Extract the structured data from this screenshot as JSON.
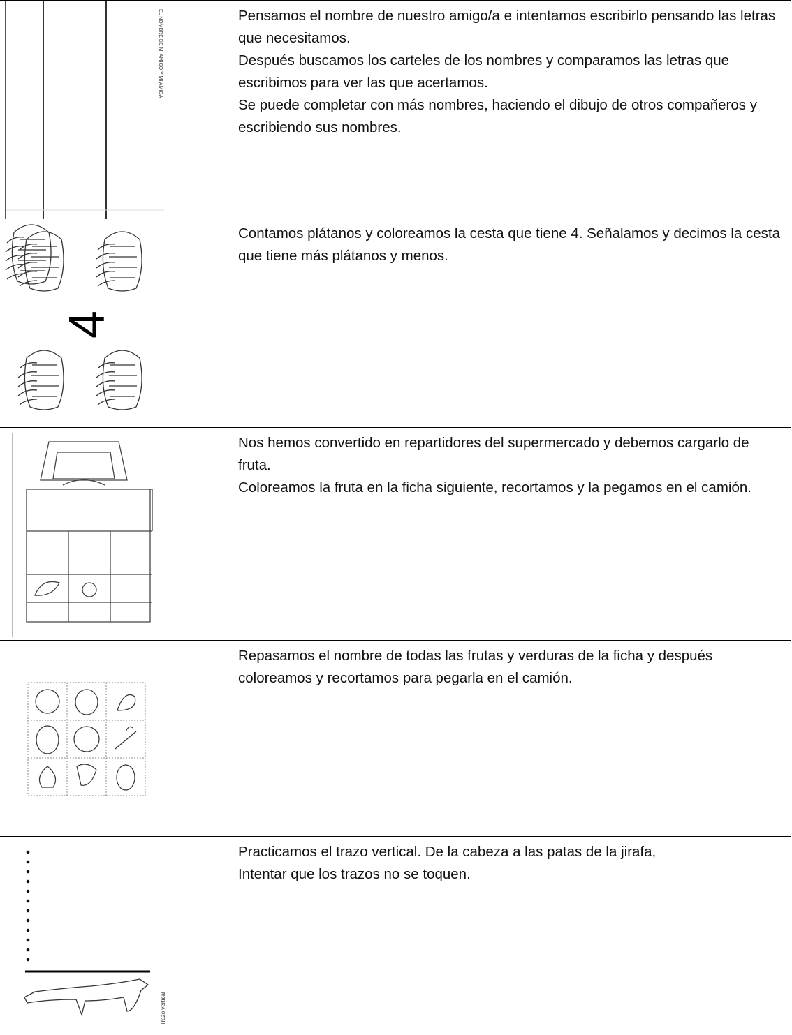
{
  "rows": [
    {
      "image_caption": "EL NOMBRE DE MI AMIGO Y MI AMIGA",
      "paragraphs": [
        "Pensamos el nombre de nuestro amigo/a e intentamos escribirlo pensando las letras que necesitamos.",
        "Después buscamos los carteles de los nombres y comparamos las letras que escribimos para ver las que acertamos.",
        "Se puede completar con más nombres, haciendo el dibujo de otros compañeros y escribiendo sus nombres."
      ]
    },
    {
      "image_label": "4",
      "paragraphs": [
        "Contamos plátanos y coloreamos la cesta que tiene 4.  Señalamos y decimos la cesta que tiene más plátanos y menos."
      ]
    },
    {
      "paragraphs": [
        "Nos hemos convertido en repartidores del supermercado y debemos cargarlo de fruta.",
        "Coloreamos la fruta en la ficha siguiente, recortamos y la pegamos en el camión."
      ]
    },
    {
      "paragraphs": [
        "Repasamos el nombre de todas las frutas y verduras de la ficha y después coloreamos y recortamos para pegarla en el camión."
      ]
    },
    {
      "image_caption": "Trazo vertical",
      "paragraphs": [
        "Practicamos el trazo vertical. De la cabeza a las patas de la jirafa,",
        "Intentar que los trazos no se toquen."
      ]
    }
  ]
}
